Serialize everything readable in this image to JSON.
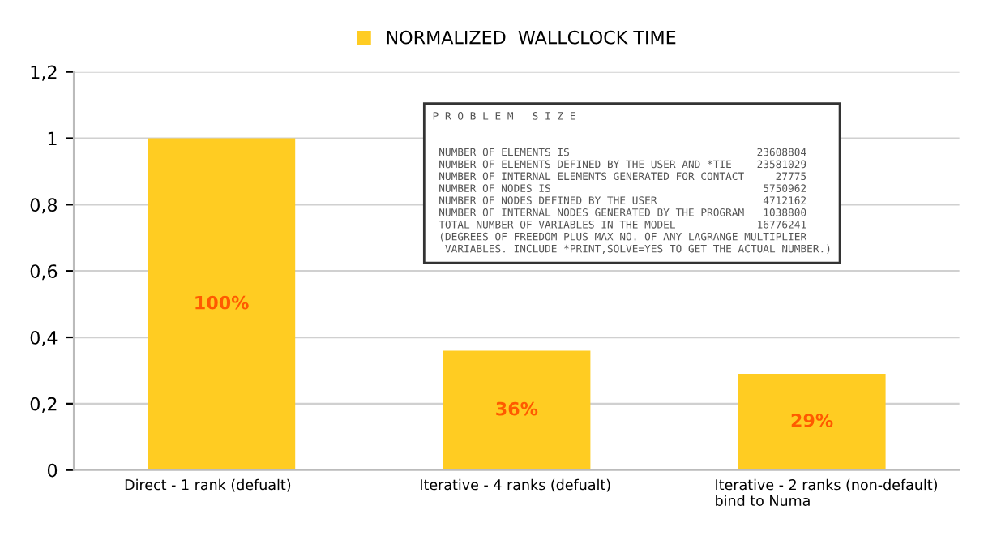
{
  "chart_data": {
    "type": "bar",
    "categories": [
      "Direct - 1 rank (defualt)",
      "Iterative - 4 ranks (defualt)",
      "Iterative - 2 ranks (non-default)\nbind to Numa"
    ],
    "series": [
      {
        "name": "NORMALIZED  WALLCLOCK TIME",
        "color": "#ffcc22",
        "values": [
          1,
          0.36,
          0.29
        ],
        "value_labels": [
          "100%",
          "36%",
          "29%"
        ]
      }
    ],
    "ylim": [
      0,
      1.2
    ],
    "yticks": [
      0,
      {
        "value": 0.2,
        "label": "0,2"
      },
      {
        "value": 0.4,
        "label": "0,4"
      },
      {
        "value": 0.6,
        "label": "0,6"
      },
      {
        "value": 0.8,
        "label": "0,8"
      },
      1,
      {
        "value": 1.2,
        "label": "1,2"
      }
    ],
    "grid": "y",
    "legend": "top",
    "annotations": [
      "P R O B L E M   S I Z E\n\n\n NUMBER OF ELEMENTS IS                              23608804\n NUMBER OF ELEMENTS DEFINED BY THE USER AND *TIE    23581029\n NUMBER OF INTERNAL ELEMENTS GENERATED FOR CONTACT     27775\n NUMBER OF NODES IS                                  5750962\n NUMBER OF NODES DEFINED BY THE USER                 4712162\n NUMBER OF INTERNAL NODES GENERATED BY THE PROGRAM   1038800\n TOTAL NUMBER OF VARIABLES IN THE MODEL             16776241\n (DEGREES OF FREEDOM PLUS MAX NO. OF ANY LAGRANGE MULTIPLIER\n  VARIABLES. INCLUDE *PRINT,SOLVE=YES TO GET THE ACTUAL NUMBER.)"
    ]
  }
}
